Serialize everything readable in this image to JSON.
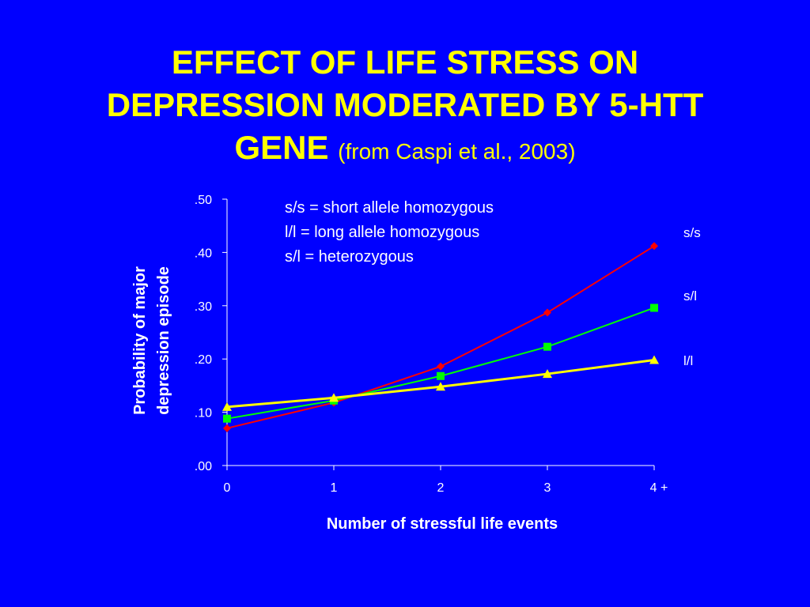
{
  "title": {
    "line1": "EFFECT OF LIFE STRESS ON",
    "line2": "DEPRESSION MODERATED BY 5-HTT",
    "line3": "GENE",
    "source": "(from Caspi et al., 2003)"
  },
  "chart_data": {
    "type": "line",
    "x": [
      0,
      1,
      2,
      3,
      4
    ],
    "categories": [
      "0",
      "1",
      "2",
      "3",
      "4 +"
    ],
    "ylim": [
      0,
      0.5
    ],
    "yticks": [
      ".00",
      ".10",
      ".20",
      ".30",
      ".40",
      ".50"
    ],
    "ytick_values": [
      0,
      0.1,
      0.2,
      0.3,
      0.4,
      0.5
    ],
    "xlabel": "Number of stressful life events",
    "ylabel_lines": [
      "Probability of major",
      "depression episode"
    ],
    "legend_notes": [
      "s/s = short allele homozygous",
      "l/l = long allele homozygous",
      "s/l = heterozygous"
    ],
    "grid": false,
    "series": [
      {
        "name": "s/s",
        "values": [
          0.07,
          0.118,
          0.186,
          0.287,
          0.412
        ],
        "color": "#FF0000",
        "marker": "diamond"
      },
      {
        "name": "s/l",
        "values": [
          0.088,
          0.122,
          0.168,
          0.223,
          0.296
        ],
        "color": "#00FF00",
        "marker": "square"
      },
      {
        "name": "l/l",
        "values": [
          0.11,
          0.127,
          0.148,
          0.172,
          0.198
        ],
        "color": "#FFFF00",
        "marker": "triangle"
      }
    ]
  },
  "colors": {
    "background": "#0000FF",
    "title": "#FFFF00",
    "axis": "#FFFFFF"
  }
}
